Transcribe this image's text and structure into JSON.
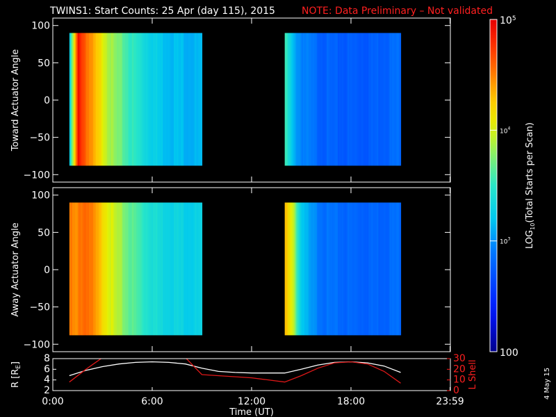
{
  "chart_data": {
    "type": "heatmap",
    "title": "TWINS1: Start Counts: 25 Apr (day 115), 2015",
    "note": "NOTE: Data Preliminary – Not validated",
    "date_stamp": "4 May 15",
    "colorbar": {
      "label": "LOG10(Total Starts per Scan)",
      "label_prefix": "LOG",
      "label_sub": "10",
      "label_suffix": "(Total Starts per Scan)",
      "ticks": [
        {
          "text": "100",
          "value": 100
        },
        {
          "text": "10",
          "sup": "3",
          "value": 1000
        },
        {
          "text": "10",
          "sup": "4",
          "value": 10000
        },
        {
          "text": "10",
          "sup": "5",
          "value": 100000
        }
      ],
      "range": [
        100,
        100000
      ],
      "scale": "log"
    },
    "x": {
      "label": "Time (UT)",
      "range_hours": [
        0,
        24
      ],
      "ticks": [
        {
          "text": "0:00",
          "value": 0
        },
        {
          "text": "6:00",
          "value": 6
        },
        {
          "text": "12:00",
          "value": 12
        },
        {
          "text": "18:00",
          "value": 18
        },
        {
          "text": "23:59",
          "value": 23.98
        }
      ]
    },
    "panels": [
      {
        "ylabel": "Toward Actuator Angle",
        "yrange": [
          -110,
          110
        ],
        "yticks": [
          {
            "text": "100",
            "value": 100
          },
          {
            "text": "50",
            "value": 50
          },
          {
            "text": "0",
            "value": 0
          },
          {
            "text": "−50",
            "value": -50
          },
          {
            "text": "−100",
            "value": -100
          }
        ],
        "data_y_range": [
          -88,
          90
        ],
        "segments": [
          {
            "start_hour": 1.0,
            "end_hour": 9.0,
            "profile": [
              [
                0,
                3.3
              ],
              [
                0.5,
                4.9
              ],
              [
                0.8,
                4.7
              ],
              [
                1.3,
                4.4
              ],
              [
                1.9,
                4.1
              ],
              [
                2.6,
                3.8
              ],
              [
                3.6,
                3.55
              ],
              [
                4.6,
                3.35
              ],
              [
                5.6,
                3.2
              ],
              [
                8.0,
                3.1
              ]
            ]
          },
          {
            "start_hour": 14.0,
            "end_hour": 21.0,
            "profile": [
              [
                0,
                3.55
              ],
              [
                0.5,
                3.1
              ],
              [
                1.0,
                2.95
              ],
              [
                2.0,
                2.8
              ],
              [
                3.0,
                2.75
              ],
              [
                5.0,
                2.75
              ],
              [
                6.0,
                2.8
              ],
              [
                7.0,
                2.85
              ]
            ]
          }
        ]
      },
      {
        "ylabel": "Away Actuator Angle",
        "yrange": [
          -110,
          110
        ],
        "yticks": [
          {
            "text": "100",
            "value": 100
          },
          {
            "text": "50",
            "value": 50
          },
          {
            "text": "0",
            "value": 0
          },
          {
            "text": "−50",
            "value": -50
          },
          {
            "text": "−100",
            "value": -100
          }
        ],
        "data_y_range": [
          -88,
          90
        ],
        "segments": [
          {
            "start_hour": 1.0,
            "end_hour": 9.0,
            "profile": [
              [
                0,
                4.5
              ],
              [
                0.4,
                4.4
              ],
              [
                0.6,
                4.55
              ],
              [
                1.0,
                4.6
              ],
              [
                1.5,
                4.4
              ],
              [
                2.0,
                4.2
              ],
              [
                2.6,
                3.95
              ],
              [
                3.5,
                3.7
              ],
              [
                4.5,
                3.5
              ],
              [
                5.5,
                3.35
              ],
              [
                8.0,
                3.25
              ]
            ]
          },
          {
            "start_hour": 14.0,
            "end_hour": 21.0,
            "profile": [
              [
                0,
                4.3
              ],
              [
                0.5,
                3.9
              ],
              [
                0.9,
                3.3
              ],
              [
                1.5,
                3.0
              ],
              [
                2.5,
                2.85
              ],
              [
                4.0,
                2.8
              ],
              [
                5.5,
                2.8
              ],
              [
                7.0,
                2.85
              ]
            ]
          }
        ]
      }
    ],
    "orbit_panel": {
      "ylabel_left": "R [RE]",
      "ylabel_left_main": "R [R",
      "ylabel_left_sub": "E",
      "ylabel_left_end": "]",
      "yrange_left": [
        2,
        8
      ],
      "yticks_left": [
        {
          "text": "2",
          "value": 2
        },
        {
          "text": "4",
          "value": 4
        },
        {
          "text": "6",
          "value": 6
        },
        {
          "text": "8",
          "value": 8
        }
      ],
      "ylabel_right": "L Shell",
      "yrange_right": [
        0,
        30
      ],
      "yticks_right": [
        {
          "text": "0",
          "value": 0
        },
        {
          "text": "10",
          "value": 10
        },
        {
          "text": "20",
          "value": 20
        },
        {
          "text": "30",
          "value": 30
        }
      ],
      "series": [
        {
          "axis": "left",
          "color": "#ffffff",
          "x": [
            1.0,
            2.0,
            3.0,
            4.0,
            5.0,
            6.0,
            7.0,
            8.0,
            9.0,
            10.0,
            11.0,
            12.0,
            13.0,
            14.0,
            15.0,
            16.0,
            17.0,
            18.0,
            19.0,
            20.0,
            21.0
          ],
          "y": [
            4.8,
            5.8,
            6.5,
            7.0,
            7.3,
            7.4,
            7.3,
            7.0,
            6.2,
            5.6,
            5.4,
            5.3,
            5.3,
            5.3,
            6.0,
            6.8,
            7.3,
            7.4,
            7.2,
            6.6,
            5.4
          ]
        },
        {
          "axis": "right",
          "color": "#e01818",
          "x": [
            1.0,
            2.0,
            3.0,
            3.3,
            7.7,
            8.0,
            9.0,
            12.0,
            14.0,
            15.0,
            16.0,
            17.0,
            18.0,
            19.0,
            20.0,
            21.0
          ],
          "y": [
            8,
            20,
            31,
            34,
            34,
            31,
            15,
            12,
            8,
            14,
            21,
            26,
            27,
            25,
            18,
            7
          ]
        }
      ]
    }
  }
}
